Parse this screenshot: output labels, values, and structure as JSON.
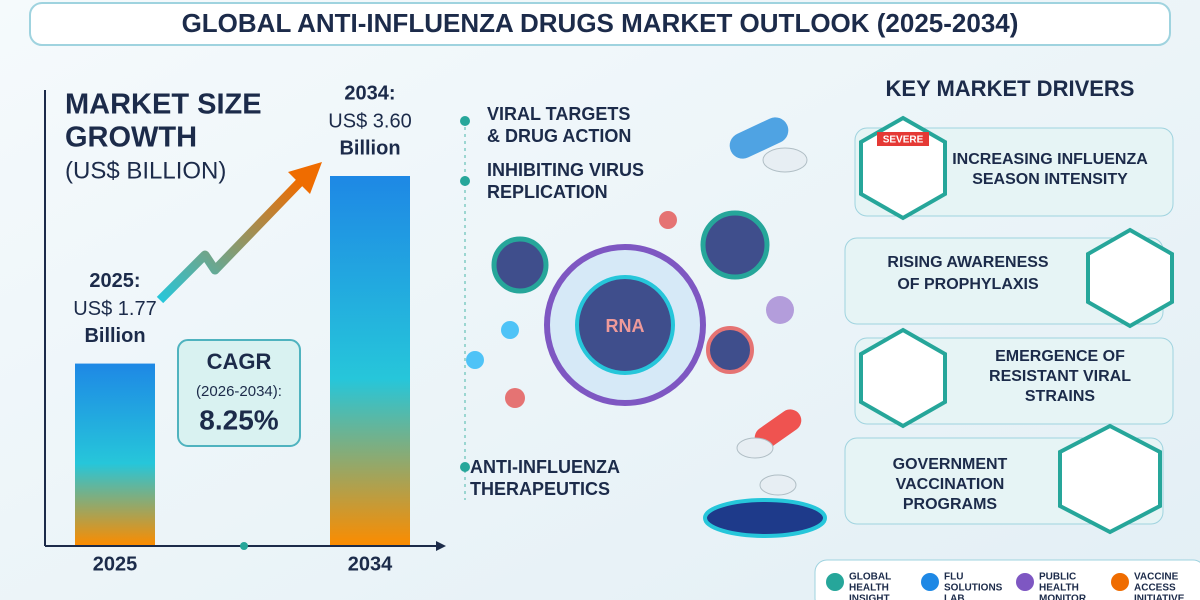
{
  "title": "GLOBAL ANTI-INFLUENZA DRUGS MARKET OUTLOOK (2025-2034)",
  "chart_data": {
    "type": "bar",
    "title": [
      "MARKET SIZE",
      "GROWTH"
    ],
    "subtitle": "(US$ BILLION)",
    "categories": [
      "2025",
      "2034"
    ],
    "bar_headers": [
      "2025:",
      "2034:"
    ],
    "values": [
      1.77,
      3.6
    ],
    "value_labels": [
      "US$ 1.77",
      "US$ 3.60"
    ],
    "unit_word": "Billion",
    "ylim": [
      0,
      4
    ],
    "colors": [
      "#1e88e5",
      "#26c6da",
      "#fb8c00"
    ]
  },
  "cagr": {
    "label": "CAGR",
    "period": "(2026-2034):",
    "value": "8.25%"
  },
  "center": {
    "items": [
      [
        "VIRAL TARGETS",
        "& DRUG ACTION"
      ],
      [
        "INHIBITING VIRUS",
        "REPLICATION"
      ],
      [
        "ANTI-INFLUENZA",
        "THERAPEUTICS"
      ]
    ],
    "rna": "RNA",
    "badge": "SEVERE"
  },
  "drivers": {
    "title": "KEY MARKET DRIVERS",
    "items": [
      [
        "INCREASING INFLUENZA",
        "SEASON INTENSITY"
      ],
      [
        "RISING AWARENESS",
        "OF PROPHYLAXIS"
      ],
      [
        "EMERGENCE OF",
        "RESISTANT VIRAL",
        "STRAINS"
      ],
      [
        "GOVERNMENT",
        "VACCINATION",
        "PROGRAMS"
      ]
    ]
  },
  "footer": [
    [
      "GLOBAL",
      "HEALTH",
      "INSIGHT"
    ],
    [
      "FLU",
      "SOLUTIONS",
      "LAB"
    ],
    [
      "PUBLIC",
      "HEALTH",
      "MONITOR"
    ],
    [
      "VACCINE",
      "ACCESS",
      "INITIATIVE"
    ]
  ]
}
